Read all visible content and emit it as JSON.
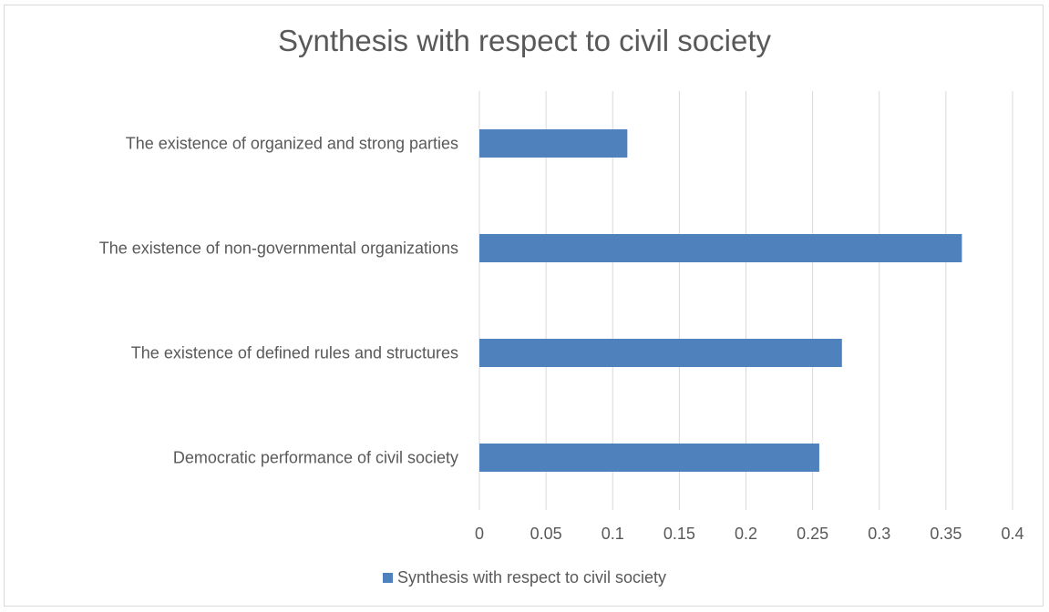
{
  "chart_data": {
    "type": "bar",
    "orientation": "horizontal",
    "title": "Synthesis with respect to civil society",
    "xlabel": "",
    "ylabel": "",
    "categories": [
      "Democratic performance of civil society",
      "The existence of defined rules and structures",
      "The existence of non-governmental organizations",
      "The existence of organized and strong parties"
    ],
    "series": [
      {
        "name": "Synthesis with respect to civil society",
        "values": [
          0.255,
          0.272,
          0.362,
          0.111
        ],
        "color": "#4f81bd"
      }
    ],
    "xlim": [
      0,
      0.4
    ],
    "xticks": [
      "0",
      "0.05",
      "0.1",
      "0.15",
      "0.2",
      "0.25",
      "0.3",
      "0.35",
      "0.4"
    ],
    "grid": true,
    "legend_position": "bottom"
  }
}
